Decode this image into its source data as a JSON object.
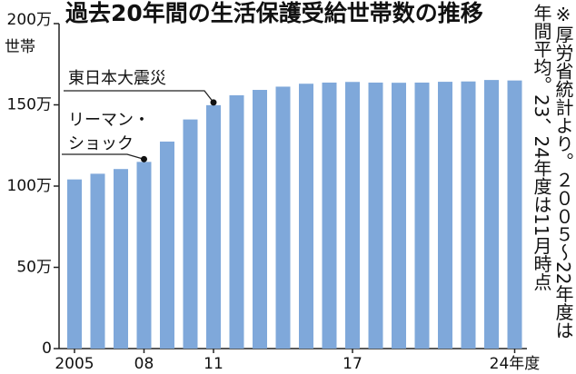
{
  "chart_data": {
    "type": "bar",
    "title": "過去20年間の生活保護受給世帯数の推移",
    "y_unit": "世帯",
    "categories": [
      "2005",
      null,
      null,
      "08",
      null,
      null,
      "11",
      null,
      null,
      null,
      null,
      null,
      "17",
      null,
      null,
      null,
      null,
      null,
      null,
      "24年度"
    ],
    "values": [
      104.1,
      107.6,
      110.5,
      114.9,
      127.4,
      141.0,
      149.8,
      155.9,
      159.2,
      161.2,
      163.0,
      163.7,
      164.1,
      163.7,
      163.6,
      163.7,
      164.2,
      164.4,
      165.3,
      165.0
    ],
    "color": "#7fa8da",
    "ylim": [
      0,
      200
    ],
    "yticks": [
      0,
      {
        "value": 50,
        "label": "50万"
      },
      {
        "value": 100,
        "label": "100万"
      },
      {
        "value": 150,
        "label": "150万"
      },
      {
        "value": 200,
        "label": "200万"
      }
    ],
    "grid": false,
    "annotations": [
      {
        "lines": [
          "東日本大震災"
        ],
        "category": "11"
      },
      {
        "lines": [
          "リーマン・",
          "ショック"
        ],
        "category": "08"
      }
    ],
    "note": [
      "※厚労省統計より。２００５～22年度は",
      "年間平均。23、24年度は11月時点"
    ]
  }
}
